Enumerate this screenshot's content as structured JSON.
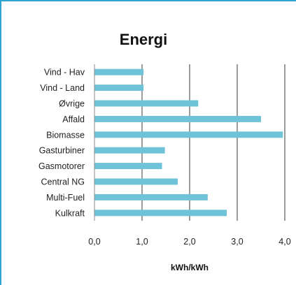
{
  "chart_data": {
    "type": "bar",
    "orientation": "horizontal",
    "title": "Energi",
    "xlabel": "kWh/kWh",
    "ylabel": "",
    "categories": [
      "Vind - Hav",
      "Vind - Land",
      "Øvrige",
      "Affald",
      "Biomasse",
      "Gasturbiner",
      "Gasmotorer",
      "Central NG",
      "Multi-Fuel",
      "Kulkraft"
    ],
    "values": [
      1.03,
      1.03,
      2.18,
      3.5,
      3.96,
      1.48,
      1.42,
      1.75,
      2.38,
      2.78
    ],
    "xlim": [
      0,
      4
    ],
    "x_ticks": [
      "0,0",
      "1,0",
      "2,0",
      "3,0",
      "4,0"
    ],
    "grid": "vertical major gridlines",
    "legend": "none",
    "bar_color": "#6fc3d8"
  }
}
